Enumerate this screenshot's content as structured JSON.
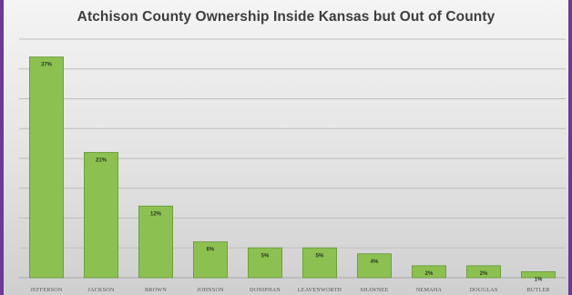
{
  "chart_data": {
    "type": "bar",
    "title": "Atchison County Ownership Inside Kansas but Out of County",
    "xlabel": "",
    "ylabel": "",
    "categories": [
      "JEFFERSON",
      "JACKSON",
      "BROWN",
      "JOHNSON",
      "DONIPHAN",
      "LEAVENWORTH",
      "SHAWNEE",
      "NEMAHA",
      "DOUGLAS",
      "BUTLER"
    ],
    "values": [
      37,
      21,
      12,
      6,
      5,
      5,
      4,
      2,
      2,
      1
    ],
    "data_labels": [
      "37%",
      "21%",
      "12%",
      "6%",
      "5%",
      "5%",
      "4%",
      "2%",
      "2%",
      "1%"
    ],
    "ylim": [
      0,
      40
    ],
    "grid": true,
    "legend": "none",
    "bar_color": "#8cc152"
  }
}
